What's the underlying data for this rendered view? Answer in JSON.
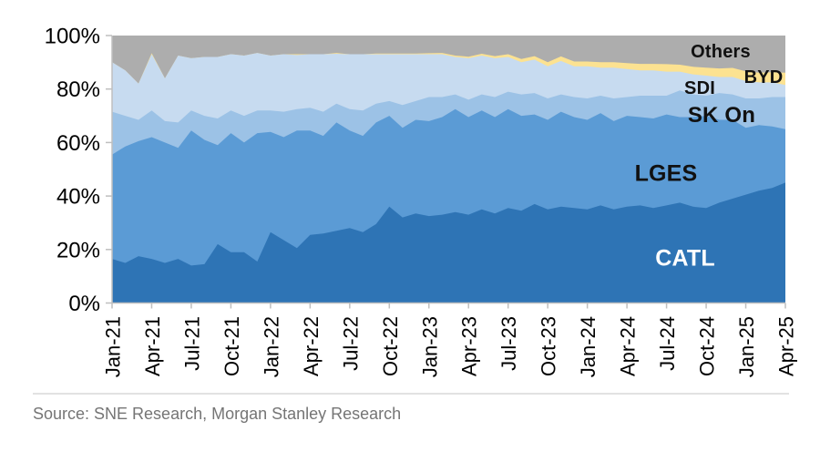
{
  "chart_data": {
    "type": "area",
    "stacking": "percent_stacked",
    "title": "",
    "xlabel": "",
    "ylabel": "",
    "ylim": [
      0,
      100
    ],
    "grid": false,
    "legend_position": "labels-on-chart",
    "x": [
      "Jan-21",
      "Feb-21",
      "Mar-21",
      "Apr-21",
      "May-21",
      "Jun-21",
      "Jul-21",
      "Aug-21",
      "Sep-21",
      "Oct-21",
      "Nov-21",
      "Dec-21",
      "Jan-22",
      "Feb-22",
      "Mar-22",
      "Apr-22",
      "May-22",
      "Jun-22",
      "Jul-22",
      "Aug-22",
      "Sep-22",
      "Oct-22",
      "Nov-22",
      "Dec-22",
      "Jan-23",
      "Feb-23",
      "Mar-23",
      "Apr-23",
      "May-23",
      "Jun-23",
      "Jul-23",
      "Aug-23",
      "Sep-23",
      "Oct-23",
      "Nov-23",
      "Dec-23",
      "Jan-24",
      "Feb-24",
      "Mar-24",
      "Apr-24",
      "May-24",
      "Jun-24",
      "Jul-24",
      "Aug-24",
      "Sep-24",
      "Oct-24",
      "Nov-24",
      "Dec-24",
      "Jan-25",
      "Feb-25",
      "Mar-25",
      "Apr-25"
    ],
    "x_tick_every": 3,
    "x_tick_labels": [
      "Jan-21",
      "Apr-21",
      "Jul-21",
      "Oct-21",
      "Jan-22",
      "Apr-22",
      "Jul-22",
      "Oct-22",
      "Jan-23",
      "Apr-23",
      "Jul-23",
      "Oct-23",
      "Jan-24",
      "Apr-24",
      "Jul-24",
      "Oct-24",
      "Jan-25",
      "Apr-25"
    ],
    "y_ticks": [
      "0%",
      "20%",
      "40%",
      "60%",
      "80%",
      "100%"
    ],
    "series": [
      {
        "name": "CATL",
        "color": "#2E74B5",
        "values": [
          16.5,
          15,
          17.5,
          16.5,
          15,
          16.5,
          14,
          14.5,
          22,
          19,
          19,
          15.5,
          26.5,
          23.5,
          20.5,
          25.5,
          26,
          27,
          28,
          26.5,
          29.5,
          36,
          32,
          33.5,
          32.5,
          33,
          34,
          33,
          35,
          33.5,
          35.5,
          34.5,
          37,
          35,
          36,
          35.5,
          35,
          36.5,
          35,
          36,
          36.5,
          35.5,
          36.5,
          37.5,
          36,
          35.5,
          37.5,
          39,
          40.5,
          42,
          43,
          45
        ]
      },
      {
        "name": "LGES",
        "color": "#5B9BD5",
        "values": [
          39,
          43.5,
          43,
          45.5,
          45,
          41.5,
          50.5,
          46.5,
          37,
          44.5,
          41,
          48,
          37.5,
          38.5,
          44,
          39,
          36.5,
          40.5,
          36.5,
          36,
          38,
          34,
          33.5,
          35,
          35.5,
          36.5,
          38.5,
          36.5,
          37,
          36,
          37,
          35.5,
          33.5,
          33.5,
          35.5,
          34,
          33.5,
          34.5,
          33,
          34,
          33,
          33.5,
          34,
          32,
          33.5,
          34.5,
          31,
          29.5,
          25,
          24.5,
          23,
          20
        ]
      },
      {
        "name": "SK On",
        "color": "#9CC2E6",
        "values": [
          16,
          11.5,
          8,
          10,
          8,
          9.5,
          7.5,
          9,
          10,
          8.5,
          10,
          8.5,
          8,
          9.5,
          8,
          8.5,
          9,
          7,
          8,
          9.5,
          7,
          5.5,
          8.5,
          7,
          9,
          7.5,
          5.5,
          6.5,
          6,
          7.5,
          6.5,
          8,
          8,
          8,
          6.5,
          7.5,
          8,
          6.5,
          8.5,
          7,
          8,
          8.5,
          7,
          10,
          8.5,
          7.5,
          10,
          9.5,
          11,
          10,
          11,
          12
        ]
      },
      {
        "name": "SDI",
        "color": "#C7DBF0",
        "values": [
          18.5,
          17,
          13.5,
          21,
          16,
          25,
          19.5,
          22,
          23,
          21,
          22.5,
          21.5,
          20.5,
          21.5,
          20.2,
          20,
          21.5,
          18.7,
          20.5,
          21,
          18.5,
          17.5,
          19,
          17.5,
          16,
          16,
          14,
          15.5,
          14.5,
          14.5,
          13,
          12,
          12.5,
          12,
          12.5,
          11.5,
          12,
          10.5,
          11.5,
          10.5,
          9.5,
          9.5,
          9,
          7,
          7.5,
          7.5,
          6,
          6.5,
          6.5,
          6,
          5.5,
          4.5
        ]
      },
      {
        "name": "BYD",
        "color": "#FCE291",
        "values": [
          0,
          0,
          0,
          0.4,
          0,
          0,
          0,
          0,
          0,
          0,
          0,
          0,
          0,
          0,
          0.3,
          0,
          0,
          0.3,
          0,
          0,
          0.3,
          0.3,
          0.3,
          0.3,
          0.4,
          0.5,
          0.5,
          0.6,
          0.7,
          0.8,
          1,
          1.2,
          1.3,
          1.5,
          1.7,
          1.8,
          1.8,
          2,
          2,
          2.2,
          2.4,
          2.4,
          2.8,
          2.6,
          2.8,
          3,
          3.2,
          3.4,
          3.6,
          3.6,
          3.8,
          4.6
        ]
      },
      {
        "name": "Others",
        "color": "#ADADAD",
        "values": [
          10,
          13,
          18,
          6.6,
          16,
          7.5,
          8.5,
          8,
          8,
          7,
          7.5,
          6.5,
          7.5,
          7,
          7,
          7,
          7,
          6.5,
          7,
          7,
          6.7,
          6.7,
          6.7,
          6.7,
          6.6,
          6.5,
          7.5,
          7.9,
          6.8,
          7.7,
          7,
          8.8,
          7.7,
          10,
          7.8,
          9.7,
          9.7,
          10,
          10,
          10.3,
          10.6,
          10.6,
          10.7,
          10.9,
          11.7,
          12,
          12.3,
          12.1,
          13.4,
          13.9,
          13.7,
          13.9
        ]
      }
    ],
    "annotations": [
      {
        "text": "Others",
        "color": "#111111"
      },
      {
        "text": "BYD",
        "color": "#111111"
      },
      {
        "text": "SDI",
        "color": "#111111"
      },
      {
        "text": "SK On",
        "color": "#111111"
      },
      {
        "text": "LGES",
        "color": "#111111"
      },
      {
        "text": "CATL",
        "color": "#FFFFFF"
      }
    ]
  },
  "axis": {
    "line_color": "#BFBFBF",
    "label_color": "#000000"
  },
  "source_note": "Source: SNE Research, Morgan Stanley Research"
}
